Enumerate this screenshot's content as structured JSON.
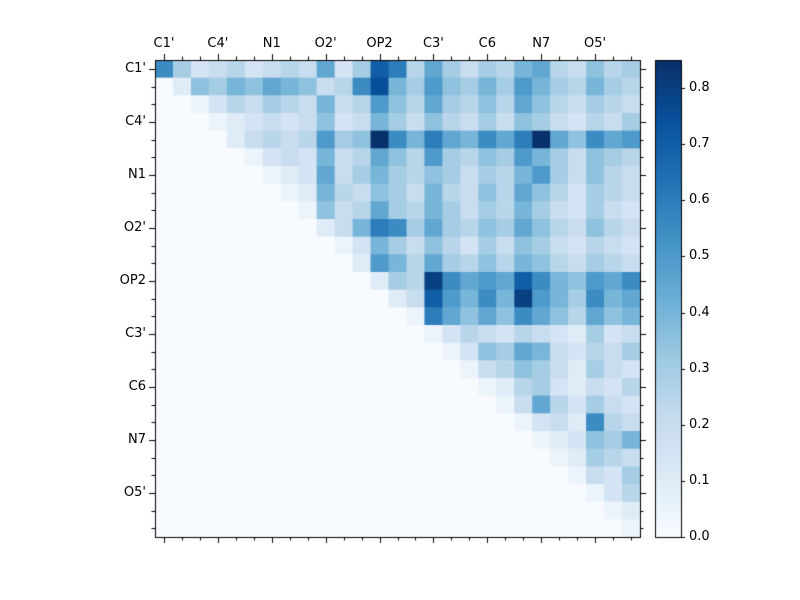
{
  "chart_data": {
    "type": "heatmap",
    "title": "",
    "xlabel": "",
    "ylabel": "",
    "x_axis_side": "top",
    "labels": [
      "C1'",
      "C4'",
      "N1",
      "O2'",
      "OP2",
      "C3'",
      "C6",
      "N7",
      "O5'"
    ],
    "group_size": 3,
    "vmin": 0.0,
    "vmax": 0.85,
    "colormap": "Blues",
    "colormap_stops": [
      [
        0.0,
        "#f7fbff"
      ],
      [
        0.125,
        "#deebf7"
      ],
      [
        0.25,
        "#c6dbef"
      ],
      [
        0.375,
        "#9ecae1"
      ],
      [
        0.5,
        "#6baed6"
      ],
      [
        0.625,
        "#4292c6"
      ],
      [
        0.75,
        "#2171b5"
      ],
      [
        0.875,
        "#08519c"
      ],
      [
        1.0,
        "#08306b"
      ]
    ],
    "colorbar_ticks": [
      "0.0",
      "0.1",
      "0.2",
      "0.3",
      "0.4",
      "0.5",
      "0.6",
      "0.7",
      "0.8"
    ],
    "matrix": [
      [
        0.55,
        0.3,
        0.15,
        0.2,
        0.25,
        0.15,
        0.2,
        0.25,
        0.2,
        0.45,
        0.15,
        0.3,
        0.7,
        0.6,
        0.25,
        0.45,
        0.3,
        0.2,
        0.3,
        0.25,
        0.4,
        0.45,
        0.25,
        0.2,
        0.35,
        0.25,
        0.3
      ],
      [
        0,
        0.1,
        0.35,
        0.3,
        0.4,
        0.35,
        0.45,
        0.4,
        0.35,
        0.2,
        0.25,
        0.55,
        0.75,
        0.4,
        0.3,
        0.5,
        0.35,
        0.3,
        0.4,
        0.3,
        0.5,
        0.4,
        0.3,
        0.25,
        0.4,
        0.3,
        0.25
      ],
      [
        0,
        0,
        0.05,
        0.15,
        0.25,
        0.2,
        0.3,
        0.25,
        0.2,
        0.4,
        0.2,
        0.25,
        0.5,
        0.35,
        0.25,
        0.45,
        0.3,
        0.25,
        0.35,
        0.25,
        0.45,
        0.35,
        0.25,
        0.2,
        0.3,
        0.25,
        0.2
      ],
      [
        0,
        0,
        0,
        0.05,
        0.1,
        0.15,
        0.2,
        0.15,
        0.2,
        0.35,
        0.15,
        0.2,
        0.4,
        0.3,
        0.2,
        0.35,
        0.25,
        0.2,
        0.3,
        0.2,
        0.35,
        0.3,
        0.2,
        0.15,
        0.25,
        0.2,
        0.3
      ],
      [
        0,
        0,
        0,
        0,
        0.1,
        0.2,
        0.25,
        0.2,
        0.25,
        0.5,
        0.3,
        0.35,
        0.85,
        0.55,
        0.4,
        0.6,
        0.45,
        0.4,
        0.55,
        0.45,
        0.6,
        0.85,
        0.45,
        0.35,
        0.55,
        0.45,
        0.5
      ],
      [
        0,
        0,
        0,
        0,
        0,
        0.05,
        0.15,
        0.2,
        0.15,
        0.4,
        0.2,
        0.25,
        0.45,
        0.35,
        0.25,
        0.5,
        0.3,
        0.25,
        0.35,
        0.3,
        0.5,
        0.4,
        0.3,
        0.2,
        0.35,
        0.3,
        0.25
      ],
      [
        0,
        0,
        0,
        0,
        0,
        0,
        0.05,
        0.1,
        0.15,
        0.45,
        0.2,
        0.3,
        0.4,
        0.3,
        0.25,
        0.35,
        0.3,
        0.2,
        0.3,
        0.25,
        0.4,
        0.5,
        0.3,
        0.2,
        0.35,
        0.25,
        0.2
      ],
      [
        0,
        0,
        0,
        0,
        0,
        0,
        0,
        0.05,
        0.1,
        0.4,
        0.25,
        0.2,
        0.35,
        0.3,
        0.2,
        0.4,
        0.25,
        0.2,
        0.35,
        0.25,
        0.45,
        0.35,
        0.25,
        0.15,
        0.3,
        0.25,
        0.2
      ],
      [
        0,
        0,
        0,
        0,
        0,
        0,
        0,
        0,
        0.05,
        0.35,
        0.2,
        0.25,
        0.45,
        0.3,
        0.25,
        0.4,
        0.3,
        0.2,
        0.3,
        0.25,
        0.4,
        0.3,
        0.2,
        0.15,
        0.3,
        0.2,
        0.15
      ],
      [
        0,
        0,
        0,
        0,
        0,
        0,
        0,
        0,
        0,
        0.1,
        0.2,
        0.4,
        0.6,
        0.55,
        0.3,
        0.45,
        0.3,
        0.25,
        0.35,
        0.3,
        0.45,
        0.35,
        0.25,
        0.2,
        0.35,
        0.25,
        0.2
      ],
      [
        0,
        0,
        0,
        0,
        0,
        0,
        0,
        0,
        0,
        0,
        0.05,
        0.15,
        0.4,
        0.3,
        0.2,
        0.35,
        0.25,
        0.15,
        0.3,
        0.2,
        0.35,
        0.3,
        0.2,
        0.15,
        0.25,
        0.2,
        0.15
      ],
      [
        0,
        0,
        0,
        0,
        0,
        0,
        0,
        0,
        0,
        0,
        0,
        0.1,
        0.5,
        0.4,
        0.25,
        0.45,
        0.3,
        0.25,
        0.35,
        0.25,
        0.4,
        0.35,
        0.25,
        0.2,
        0.3,
        0.25,
        0.2
      ],
      [
        0,
        0,
        0,
        0,
        0,
        0,
        0,
        0,
        0,
        0,
        0,
        0,
        0.1,
        0.3,
        0.25,
        0.8,
        0.55,
        0.45,
        0.5,
        0.45,
        0.7,
        0.55,
        0.4,
        0.35,
        0.5,
        0.45,
        0.55
      ],
      [
        0,
        0,
        0,
        0,
        0,
        0,
        0,
        0,
        0,
        0,
        0,
        0,
        0,
        0.1,
        0.2,
        0.7,
        0.5,
        0.4,
        0.55,
        0.4,
        0.8,
        0.5,
        0.4,
        0.3,
        0.55,
        0.4,
        0.45
      ],
      [
        0,
        0,
        0,
        0,
        0,
        0,
        0,
        0,
        0,
        0,
        0,
        0,
        0,
        0,
        0.05,
        0.6,
        0.45,
        0.35,
        0.45,
        0.35,
        0.55,
        0.45,
        0.35,
        0.25,
        0.45,
        0.35,
        0.4
      ],
      [
        0,
        0,
        0,
        0,
        0,
        0,
        0,
        0,
        0,
        0,
        0,
        0,
        0,
        0,
        0,
        0.05,
        0.15,
        0.25,
        0.2,
        0.15,
        0.25,
        0.2,
        0.15,
        0.1,
        0.3,
        0.15,
        0.2
      ],
      [
        0,
        0,
        0,
        0,
        0,
        0,
        0,
        0,
        0,
        0,
        0,
        0,
        0,
        0,
        0,
        0,
        0.05,
        0.15,
        0.35,
        0.3,
        0.45,
        0.4,
        0.2,
        0.15,
        0.25,
        0.2,
        0.3
      ],
      [
        0,
        0,
        0,
        0,
        0,
        0,
        0,
        0,
        0,
        0,
        0,
        0,
        0,
        0,
        0,
        0,
        0,
        0.05,
        0.2,
        0.25,
        0.35,
        0.3,
        0.2,
        0.1,
        0.3,
        0.2,
        0.15
      ],
      [
        0,
        0,
        0,
        0,
        0,
        0,
        0,
        0,
        0,
        0,
        0,
        0,
        0,
        0,
        0,
        0,
        0,
        0,
        0.05,
        0.1,
        0.25,
        0.3,
        0.15,
        0.1,
        0.2,
        0.15,
        0.25
      ],
      [
        0,
        0,
        0,
        0,
        0,
        0,
        0,
        0,
        0,
        0,
        0,
        0,
        0,
        0,
        0,
        0,
        0,
        0,
        0,
        0.05,
        0.2,
        0.45,
        0.25,
        0.15,
        0.3,
        0.2,
        0.15
      ],
      [
        0,
        0,
        0,
        0,
        0,
        0,
        0,
        0,
        0,
        0,
        0,
        0,
        0,
        0,
        0,
        0,
        0,
        0,
        0,
        0,
        0.05,
        0.15,
        0.2,
        0.1,
        0.55,
        0.25,
        0.2
      ],
      [
        0,
        0,
        0,
        0,
        0,
        0,
        0,
        0,
        0,
        0,
        0,
        0,
        0,
        0,
        0,
        0,
        0,
        0,
        0,
        0,
        0,
        0.05,
        0.1,
        0.15,
        0.35,
        0.3,
        0.4
      ],
      [
        0,
        0,
        0,
        0,
        0,
        0,
        0,
        0,
        0,
        0,
        0,
        0,
        0,
        0,
        0,
        0,
        0,
        0,
        0,
        0,
        0,
        0,
        0.05,
        0.1,
        0.3,
        0.25,
        0.2
      ],
      [
        0,
        0,
        0,
        0,
        0,
        0,
        0,
        0,
        0,
        0,
        0,
        0,
        0,
        0,
        0,
        0,
        0,
        0,
        0,
        0,
        0,
        0,
        0,
        0.05,
        0.2,
        0.15,
        0.3
      ],
      [
        0,
        0,
        0,
        0,
        0,
        0,
        0,
        0,
        0,
        0,
        0,
        0,
        0,
        0,
        0,
        0,
        0,
        0,
        0,
        0,
        0,
        0,
        0,
        0,
        0.05,
        0.15,
        0.25
      ],
      [
        0,
        0,
        0,
        0,
        0,
        0,
        0,
        0,
        0,
        0,
        0,
        0,
        0,
        0,
        0,
        0,
        0,
        0,
        0,
        0,
        0,
        0,
        0,
        0,
        0,
        0.05,
        0.1
      ],
      [
        0,
        0,
        0,
        0,
        0,
        0,
        0,
        0,
        0,
        0,
        0,
        0,
        0,
        0,
        0,
        0,
        0,
        0,
        0,
        0,
        0,
        0,
        0,
        0,
        0,
        0,
        0.05
      ]
    ]
  }
}
